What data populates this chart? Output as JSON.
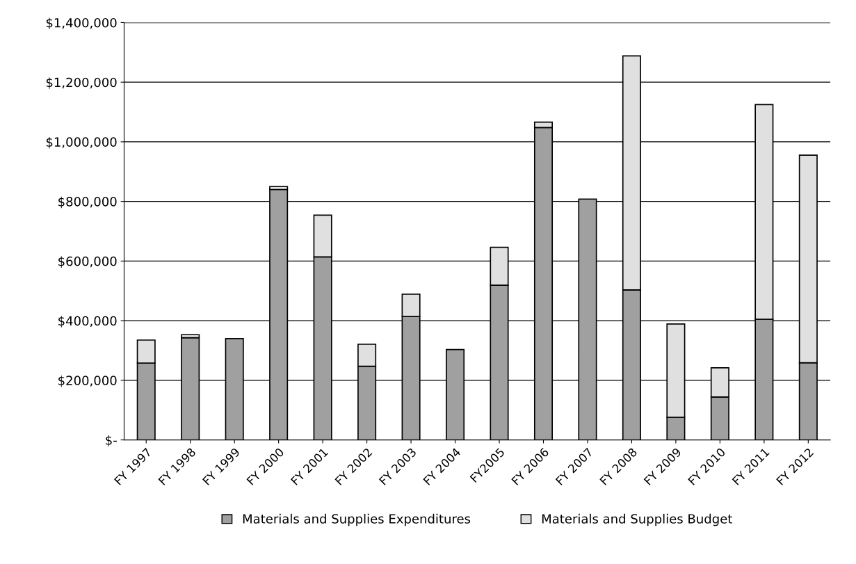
{
  "chart_data": {
    "type": "bar",
    "stacked": true,
    "categories": [
      "FY 1997",
      "FY 1998",
      "FY 1999",
      "FY 2000",
      "FY 2001",
      "FY 2002",
      "FY 2003",
      "FY 2004",
      "FY2005",
      "FY 2006",
      "FY 2007",
      "FY 2008",
      "FY 2009",
      "FY 2010",
      "FY 2011",
      "FY 2012"
    ],
    "series": [
      {
        "name": "Materials and Supplies Expenditures",
        "color": "#a0a0a0",
        "values": [
          258000,
          343000,
          340000,
          840000,
          614000,
          247000,
          414000,
          303000,
          519000,
          1048000,
          808000,
          503000,
          76000,
          144000,
          405000,
          259000
        ]
      },
      {
        "name": "Materials and Supplies Budget",
        "color": "#e0e0e0",
        "values": [
          77000,
          10000,
          null,
          10000,
          140000,
          74000,
          75000,
          null,
          127000,
          18000,
          null,
          785000,
          313000,
          98000,
          720000,
          696000
        ]
      }
    ],
    "ylim": [
      0,
      1400000
    ],
    "yticks": [
      {
        "value": 0,
        "label": "$-"
      },
      {
        "value": 200000,
        "label": "$200,000"
      },
      {
        "value": 400000,
        "label": "$400,000"
      },
      {
        "value": 600000,
        "label": "$600,000"
      },
      {
        "value": 800000,
        "label": "$800,000"
      },
      {
        "value": 1000000,
        "label": "$1,000,000"
      },
      {
        "value": 1200000,
        "label": "$1,200,000"
      },
      {
        "value": 1400000,
        "label": "$1,400,000"
      }
    ],
    "grid": "y",
    "legend": "bottom"
  }
}
